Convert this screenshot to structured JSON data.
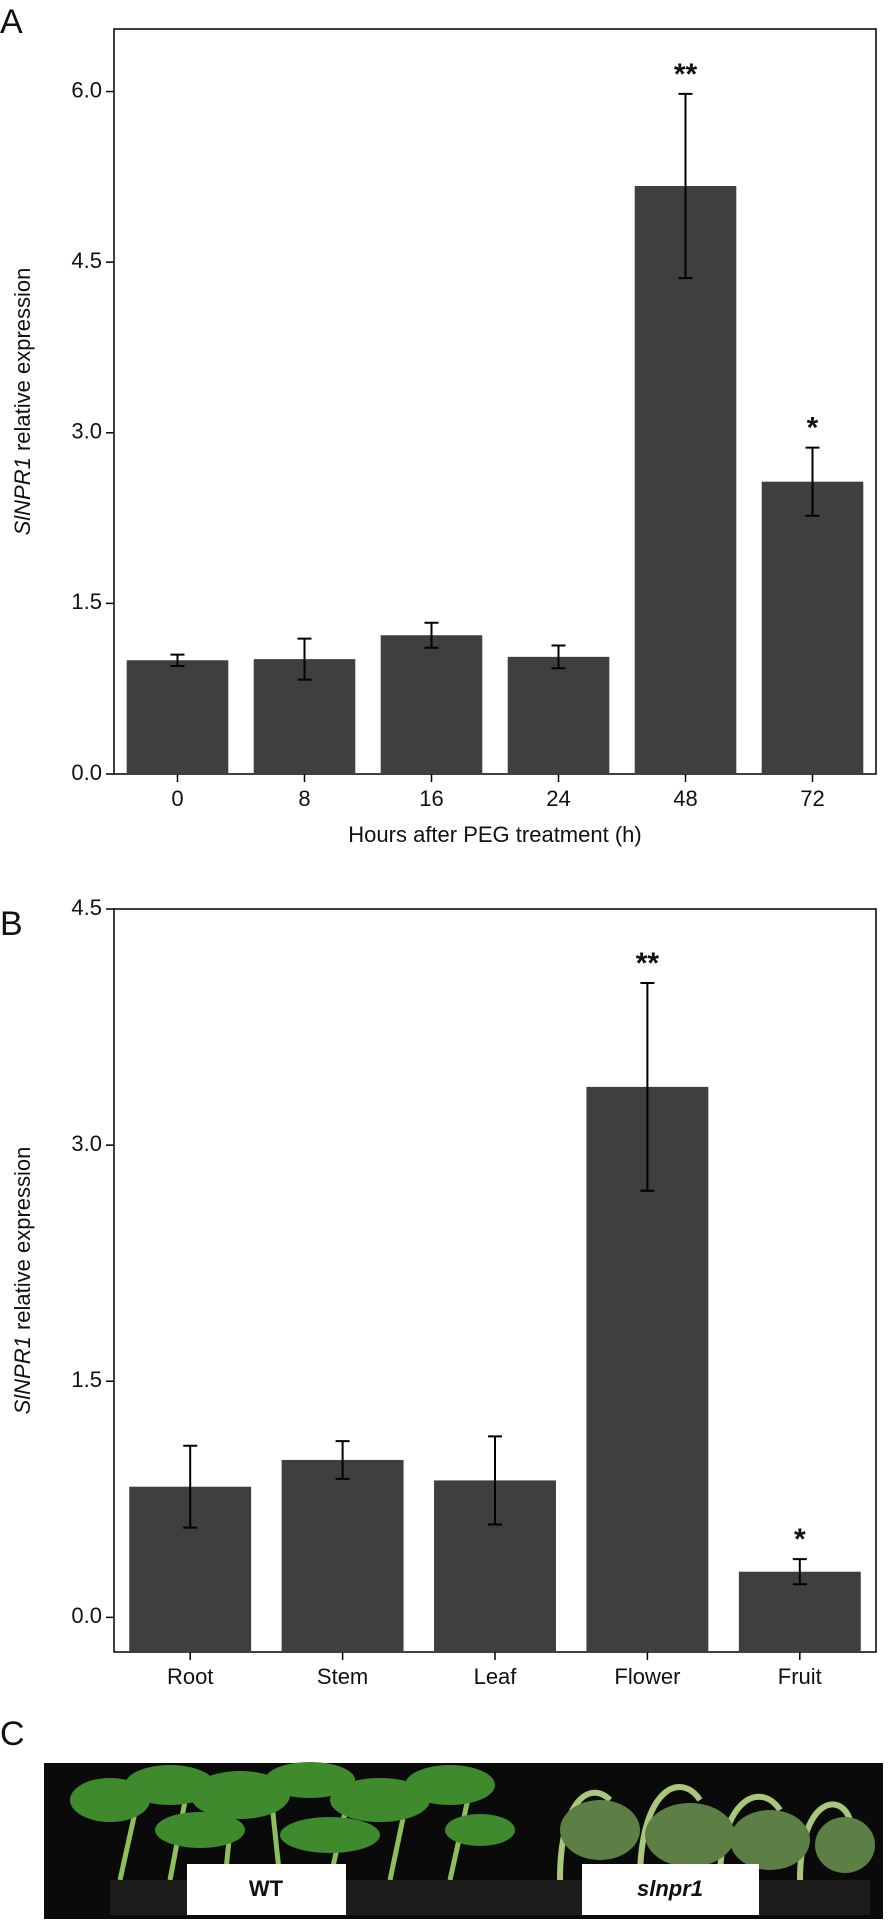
{
  "chart_data": [
    {
      "type": "bar",
      "panel_label": "A",
      "ylabel_gene": "SlNPR1",
      "ylabel": "relative expression",
      "xlabel": "Hours after PEG treatment (h)",
      "categories": [
        "0",
        "8",
        "16",
        "24",
        "48",
        "72"
      ],
      "values": [
        1.0,
        1.01,
        1.22,
        1.03,
        5.17,
        2.57
      ],
      "errors": [
        0.05,
        0.18,
        0.11,
        0.1,
        0.81,
        0.3
      ],
      "significance": [
        null,
        null,
        null,
        null,
        "**",
        "*"
      ],
      "color": "#3f3f3f",
      "ylim": [
        0,
        6.55
      ],
      "yticks": [
        {
          "value": 0,
          "label": "0.0"
        },
        {
          "value": 1.5,
          "label": "1.5"
        },
        {
          "value": 3,
          "label": "3.0"
        },
        {
          "value": 4.5,
          "label": "4.5"
        },
        {
          "value": 6,
          "label": "6.0"
        }
      ]
    },
    {
      "type": "bar",
      "panel_label": "B",
      "ylabel_gene": "SlNPR1",
      "ylabel": "relative expression",
      "categories": [
        "Root",
        "Stem",
        "Leaf",
        "Flower",
        "Fruit"
      ],
      "values": [
        0.83,
        1.0,
        0.87,
        3.37,
        0.29
      ],
      "errors": [
        0.26,
        0.12,
        0.28,
        0.66,
        0.08
      ],
      "significance": [
        null,
        null,
        null,
        "**",
        "*"
      ],
      "color": "#3f3f3f",
      "ylim": [
        -0.22,
        4.5
      ],
      "yticks": [
        {
          "value": 0,
          "label": "0.0"
        },
        {
          "value": 1.5,
          "label": "1.5"
        },
        {
          "value": 3,
          "label": "3.0"
        },
        {
          "value": 4.5,
          "label": "4.5"
        }
      ]
    }
  ],
  "photo": {
    "panel_label": "C",
    "left_label": "WT",
    "right_label": "slnpr1"
  }
}
